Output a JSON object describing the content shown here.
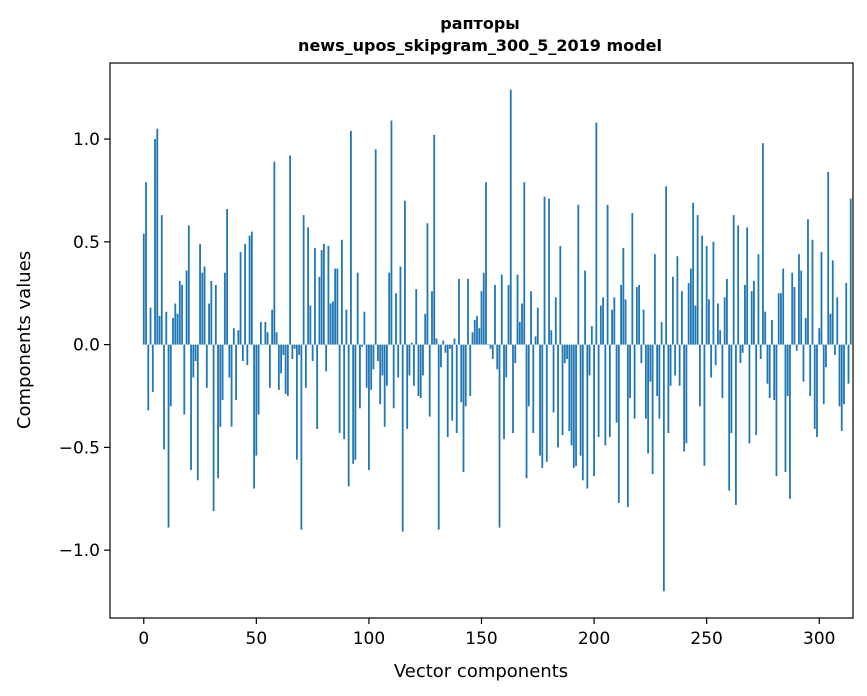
{
  "chart_data": {
    "type": "bar",
    "title_lines": [
      "рапторы",
      "news_upos_skipgram_300_5_2019 model"
    ],
    "xlabel": "Vector components",
    "ylabel": "Components values",
    "xlim": [
      -15,
      315
    ],
    "ylim": [
      -1.33,
      1.37
    ],
    "xticks": [
      0,
      50,
      100,
      150,
      200,
      250,
      300
    ],
    "xtick_labels": [
      "0",
      "50",
      "100",
      "150",
      "200",
      "250",
      "300"
    ],
    "yticks": [
      -1.0,
      -0.5,
      0.0,
      0.5,
      1.0
    ],
    "ytick_labels": [
      "−1.0",
      "−0.5",
      "0.0",
      "0.5",
      "1.0"
    ],
    "grid": false,
    "bar_color": "#1f77b4",
    "values": [
      0.54,
      0.79,
      -0.32,
      0.18,
      -0.23,
      1.0,
      1.05,
      0.14,
      0.63,
      -0.51,
      0.16,
      -0.89,
      -0.3,
      0.13,
      0.2,
      0.15,
      0.31,
      0.29,
      -0.34,
      0.36,
      0.58,
      -0.61,
      -0.16,
      -0.08,
      -0.66,
      0.49,
      0.35,
      0.38,
      -0.21,
      0.2,
      0.31,
      -0.81,
      0.29,
      -0.65,
      -0.4,
      -0.27,
      0.35,
      0.66,
      -0.16,
      -0.4,
      0.08,
      -0.27,
      0.07,
      0.45,
      -0.08,
      0.49,
      -0.1,
      0.53,
      0.55,
      -0.7,
      -0.54,
      -0.34,
      0.11,
      0.0,
      0.11,
      0.06,
      -0.21,
      0.17,
      0.89,
      0.06,
      -0.22,
      -0.14,
      -0.05,
      -0.24,
      -0.25,
      0.92,
      -0.07,
      -0.02,
      -0.56,
      -0.05,
      -0.9,
      0.63,
      -0.21,
      0.57,
      0.19,
      -0.08,
      0.47,
      -0.41,
      0.33,
      0.46,
      0.49,
      -0.13,
      0.48,
      0.2,
      0.21,
      0.37,
      0.37,
      -0.43,
      0.51,
      -0.46,
      0.17,
      -0.69,
      1.04,
      -0.58,
      -0.56,
      0.35,
      -0.31,
      -0.01,
      0.16,
      -0.21,
      -0.61,
      -0.22,
      -0.12,
      0.95,
      -0.08,
      -0.29,
      -0.15,
      -0.4,
      -0.2,
      0.35,
      1.09,
      -0.31,
      0.25,
      -0.16,
      0.38,
      -0.91,
      0.7,
      -0.41,
      -0.15,
      0.01,
      -0.2,
      0.27,
      -0.25,
      -0.26,
      -0.15,
      0.15,
      0.59,
      -0.35,
      0.26,
      1.02,
      0.03,
      -0.9,
      -0.11,
      0.02,
      -0.04,
      -0.45,
      -0.02,
      -0.37,
      0.03,
      -0.43,
      0.32,
      -0.28,
      -0.62,
      -0.3,
      0.32,
      -0.25,
      0.06,
      0.12,
      0.14,
      0.08,
      0.26,
      0.35,
      0.79,
      0.0,
      -0.02,
      -0.07,
      0.29,
      -0.12,
      -0.89,
      0.34,
      -0.46,
      -0.16,
      0.29,
      1.24,
      -0.43,
      -0.09,
      0.34,
      0.11,
      0.2,
      0.79,
      -0.65,
      -0.3,
      0.26,
      -0.43,
      0.04,
      0.18,
      -0.54,
      -0.6,
      0.72,
      -0.57,
      0.71,
      0.07,
      -0.33,
      0.23,
      -0.5,
      0.48,
      -0.44,
      -0.09,
      -0.07,
      -0.42,
      -0.49,
      -0.6,
      -0.59,
      0.68,
      -0.54,
      -0.66,
      0.36,
      -0.7,
      -0.15,
      0.09,
      -0.64,
      1.08,
      -0.45,
      0.19,
      0.23,
      -0.49,
      0.68,
      -0.45,
      0.17,
      0.23,
      -0.38,
      -0.77,
      0.29,
      0.47,
      0.22,
      -0.79,
      -0.26,
      0.64,
      -0.36,
      0.28,
      0.29,
      -0.09,
      0.17,
      -0.36,
      -0.53,
      -0.18,
      -0.63,
      0.44,
      -0.25,
      -0.36,
      0.11,
      -1.2,
      0.77,
      -0.43,
      -0.2,
      0.33,
      -0.15,
      0.43,
      -0.2,
      0.26,
      -0.52,
      -0.48,
      0.3,
      0.37,
      0.69,
      0.19,
      0.63,
      -0.3,
      0.53,
      -0.59,
      0.48,
      0.22,
      -0.16,
      0.5,
      -0.1,
      0.2,
      0.07,
      -0.26,
      0.23,
      0.32,
      -0.71,
      -0.43,
      0.63,
      -0.78,
      0.58,
      -0.09,
      -0.04,
      0.29,
      0.57,
      -0.48,
      0.26,
      0.31,
      -0.44,
      0.44,
      -0.07,
      0.98,
      0.16,
      -0.19,
      -0.26,
      0.12,
      -0.27,
      -0.64,
      0.25,
      0.25,
      0.37,
      -0.62,
      -0.25,
      -0.75,
      0.35,
      0.28,
      -0.03,
      0.44,
      0.36,
      -0.18,
      0.13,
      0.61,
      -0.25,
      0.51,
      -0.41,
      -0.45,
      0.08,
      0.45,
      -0.29,
      -0.11,
      0.84,
      0.15,
      0.41,
      -0.05,
      0.23,
      -0.3,
      -0.42,
      -0.29,
      0.3,
      -0.19,
      0.71
    ]
  }
}
